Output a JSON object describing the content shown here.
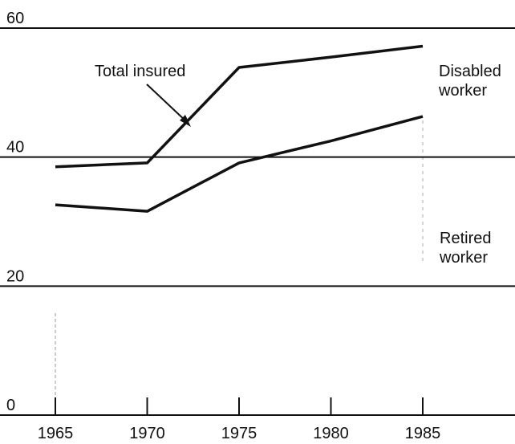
{
  "chart_data": {
    "type": "line",
    "x": [
      1965,
      1970,
      1975,
      1980,
      1985
    ],
    "xlim": [
      1965,
      1985
    ],
    "xticks": [
      1965,
      1970,
      1975,
      1980,
      1985
    ],
    "ylim": [
      0,
      60
    ],
    "yticks": [
      0,
      20,
      40,
      60
    ],
    "grid": true,
    "series": [
      {
        "name": "Total insured",
        "color": "#111111",
        "values": [
          38.5,
          39.1,
          53.9,
          55.5,
          57.2
        ]
      },
      {
        "name": "Retired worker",
        "color": "#111111",
        "values": [
          32.6,
          31.6,
          39.1,
          42.5,
          46.3
        ]
      }
    ],
    "annotations": [
      "Disabled worker"
    ]
  }
}
